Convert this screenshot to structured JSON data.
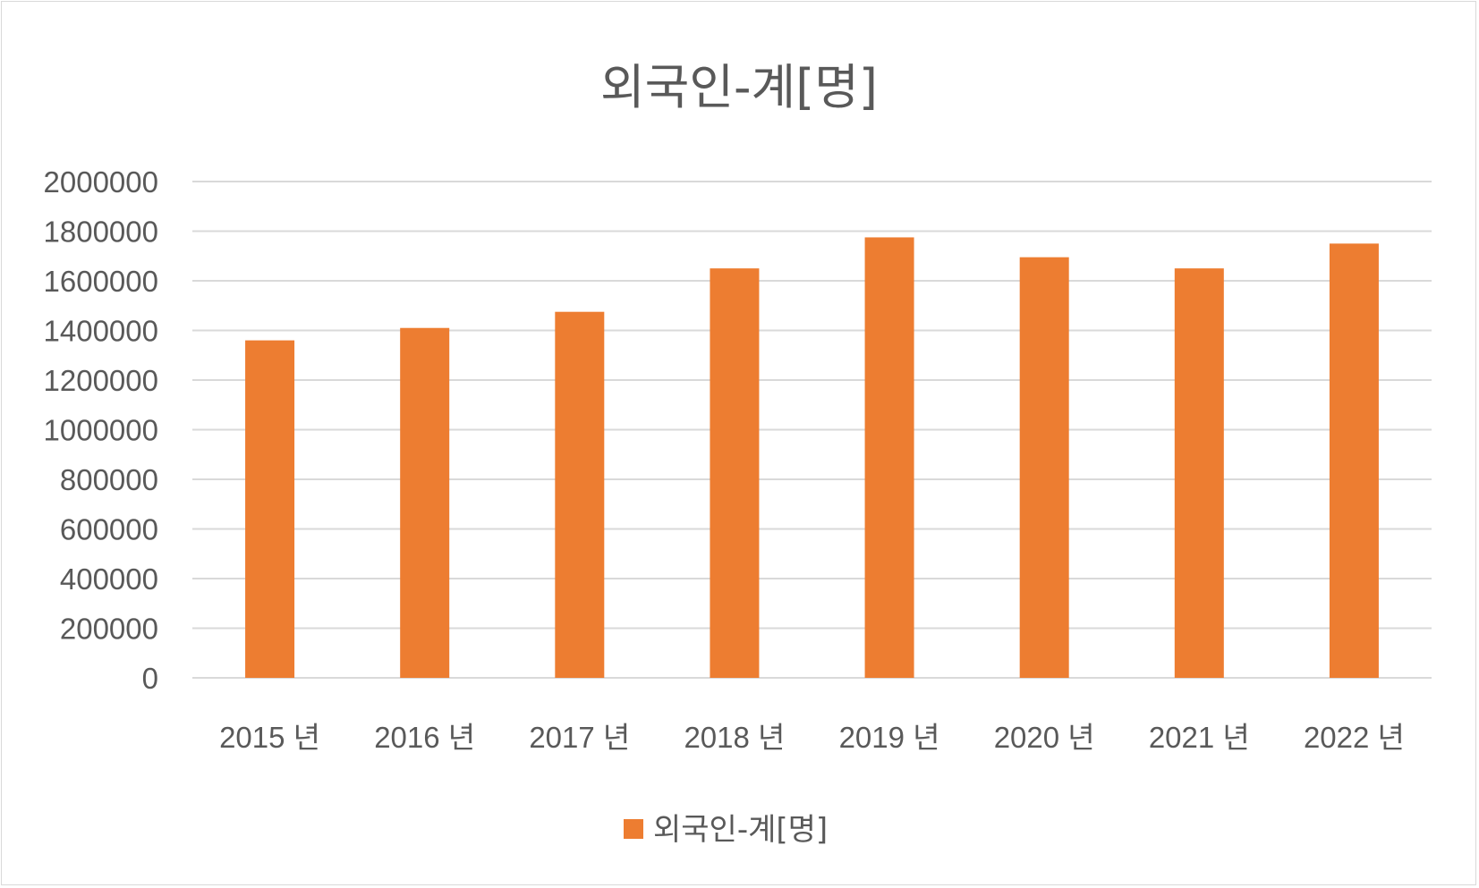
{
  "chart_data": {
    "type": "bar",
    "title": "외국인-계[명]",
    "categories": [
      "2015 년",
      "2016 년",
      "2017 년",
      "2018 년",
      "2019 년",
      "2020 년",
      "2021 년",
      "2022 년"
    ],
    "series": [
      {
        "name": "외국인-계[명]",
        "color": "#ED7D31",
        "values": [
          1360000,
          1410000,
          1475000,
          1650000,
          1775000,
          1695000,
          1650000,
          1750000
        ]
      }
    ],
    "ylim": [
      0,
      2000000
    ],
    "yticks": [
      "0",
      "200000",
      "400000",
      "600000",
      "800000",
      "1000000",
      "1200000",
      "1400000",
      "1600000",
      "1800000",
      "2000000"
    ],
    "xlabel": "",
    "ylabel": "",
    "grid": true,
    "legend": "bottom-center"
  },
  "colors": {
    "bar": "#ED7D31",
    "grid": "#d9d9d9",
    "text": "#595959"
  }
}
